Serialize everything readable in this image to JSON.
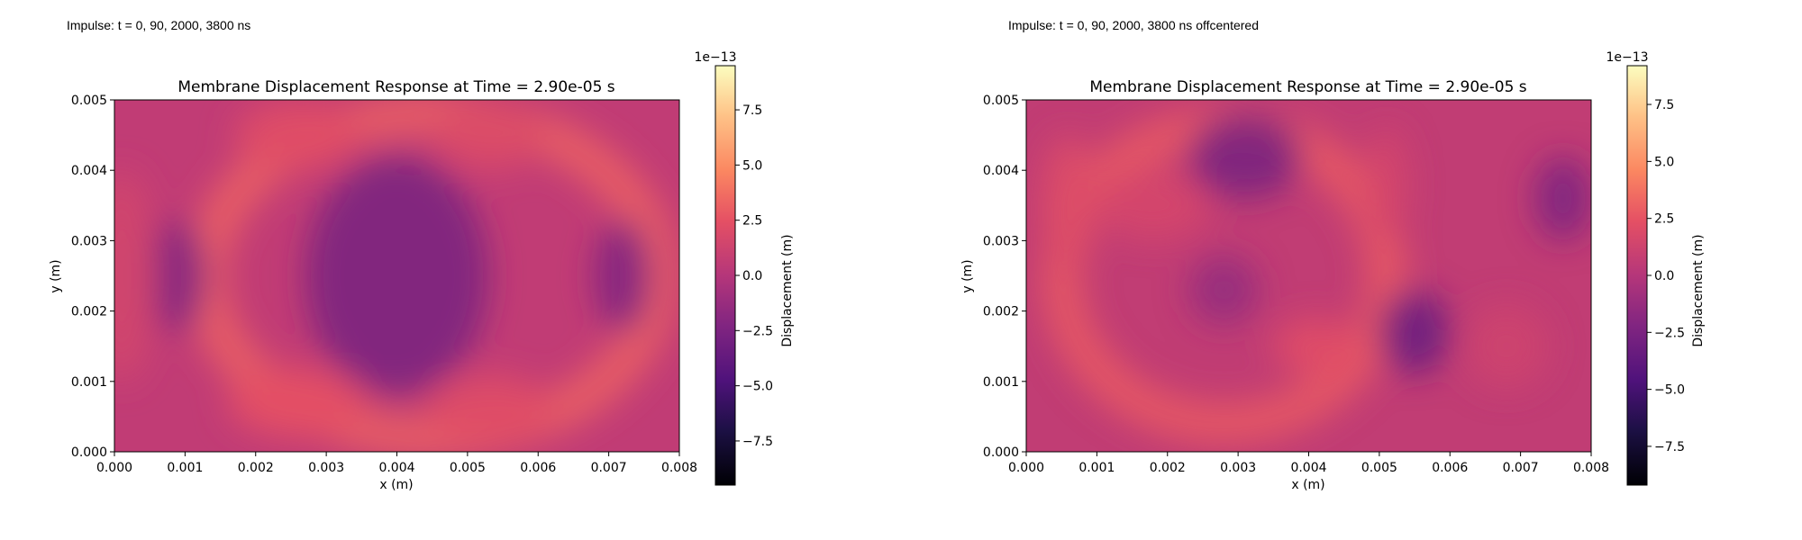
{
  "panels": [
    {
      "caption": "Impulse: t = 0, 90, 2000, 3800 ns",
      "chart": {
        "type": "heatmap",
        "title": "Membrane Displacement Response at Time = 2.90e-05 s",
        "xlabel": "x (m)",
        "ylabel": "y (m)",
        "xlim": [
          0.0,
          0.008
        ],
        "ylim": [
          0.0,
          0.005
        ],
        "x_ticks": [
          "0.000",
          "0.001",
          "0.002",
          "0.003",
          "0.004",
          "0.005",
          "0.006",
          "0.007",
          "0.008"
        ],
        "y_ticks": [
          "0.000",
          "0.001",
          "0.002",
          "0.003",
          "0.004",
          "0.005"
        ],
        "colormap": "magma",
        "colorbar": {
          "label": "Displacement (m)",
          "exponent": "1e−13",
          "range": [
            -9.5,
            9.5
          ],
          "ticks": [
            "−7.5",
            "−5.0",
            "−2.5",
            "0.0",
            "2.5",
            "5.0",
            "7.5"
          ],
          "tick_values": [
            -7.5,
            -5.0,
            -2.5,
            0.0,
            2.5,
            5.0,
            7.5
          ]
        },
        "base_value": 0.6,
        "features": [
          {
            "x": 0.0045,
            "y": 0.0025,
            "rx": 0.0032,
            "ry": 0.0023,
            "v": 3.2,
            "shape": "ring"
          },
          {
            "x": 0.0026,
            "y": 0.0045,
            "rx": 0.0009,
            "ry": 0.0005,
            "v": 2.2
          },
          {
            "x": 0.0053,
            "y": 0.0045,
            "rx": 0.0008,
            "ry": 0.0005,
            "v": 2.0
          },
          {
            "x": 0.0026,
            "y": 0.0007,
            "rx": 0.001,
            "ry": 0.0005,
            "v": 2.4
          },
          {
            "x": 0.0053,
            "y": 0.0006,
            "rx": 0.0009,
            "ry": 0.0005,
            "v": 2.2
          },
          {
            "x": 0.004,
            "y": 0.0025,
            "rx": 0.0013,
            "ry": 0.0017,
            "v": -2.6
          },
          {
            "x": 0.0009,
            "y": 0.0025,
            "rx": 0.0004,
            "ry": 0.0008,
            "v": -2.3
          },
          {
            "x": 0.0072,
            "y": 0.0025,
            "rx": 0.0004,
            "ry": 0.0008,
            "v": -2.3
          },
          {
            "x": 0.0001,
            "y": 0.0025,
            "rx": 0.0005,
            "ry": 0.0015,
            "v": 1.5
          }
        ]
      }
    },
    {
      "caption": "Impulse: t = 0, 90, 2000, 3800 ns offcentered",
      "chart": {
        "type": "heatmap",
        "title": "Membrane Displacement Response at Time = 2.90e-05 s",
        "xlabel": "x (m)",
        "ylabel": "y (m)",
        "xlim": [
          0.0,
          0.008
        ],
        "ylim": [
          0.0,
          0.005
        ],
        "x_ticks": [
          "0.000",
          "0.001",
          "0.002",
          "0.003",
          "0.004",
          "0.005",
          "0.006",
          "0.007",
          "0.008"
        ],
        "y_ticks": [
          "0.000",
          "0.001",
          "0.002",
          "0.003",
          "0.004",
          "0.005"
        ],
        "colormap": "magma",
        "colorbar": {
          "label": "Displacement (m)",
          "exponent": "1e−13",
          "range": [
            -9.2,
            9.2
          ],
          "ticks": [
            "−7.5",
            "−5.0",
            "−2.5",
            "0.0",
            "2.5",
            "5.0",
            "7.5"
          ],
          "tick_values": [
            -7.5,
            -5.0,
            -2.5,
            0.0,
            2.5,
            5.0,
            7.5
          ]
        },
        "base_value": 0.6,
        "features": [
          {
            "x": 0.0028,
            "y": 0.0025,
            "rx": 0.0023,
            "ry": 0.0021,
            "v": 2.8,
            "shape": "ring"
          },
          {
            "x": 0.0006,
            "y": 0.0035,
            "rx": 0.0004,
            "ry": 0.001,
            "v": 2.0
          },
          {
            "x": 0.0018,
            "y": 0.0035,
            "rx": 0.0008,
            "ry": 0.0005,
            "v": 1.6
          },
          {
            "x": 0.0041,
            "y": 0.0015,
            "rx": 0.0006,
            "ry": 0.0004,
            "v": 2.2
          },
          {
            "x": 0.0051,
            "y": 0.0038,
            "rx": 0.0003,
            "ry": 0.0008,
            "v": 1.6
          },
          {
            "x": 0.0031,
            "y": 0.0042,
            "rx": 0.0008,
            "ry": 0.0006,
            "v": -2.6
          },
          {
            "x": 0.0055,
            "y": 0.0017,
            "rx": 0.0005,
            "ry": 0.0006,
            "v": -3.2
          },
          {
            "x": 0.0076,
            "y": 0.0036,
            "rx": 0.0004,
            "ry": 0.0006,
            "v": -2.4
          },
          {
            "x": 0.0028,
            "y": 0.0023,
            "rx": 0.0005,
            "ry": 0.0005,
            "v": -1.4
          },
          {
            "x": 0.0068,
            "y": 0.0015,
            "rx": 0.0006,
            "ry": 0.0006,
            "v": 1.2
          }
        ]
      }
    }
  ],
  "colors": {
    "axis": "#000000",
    "background": "#ffffff"
  }
}
